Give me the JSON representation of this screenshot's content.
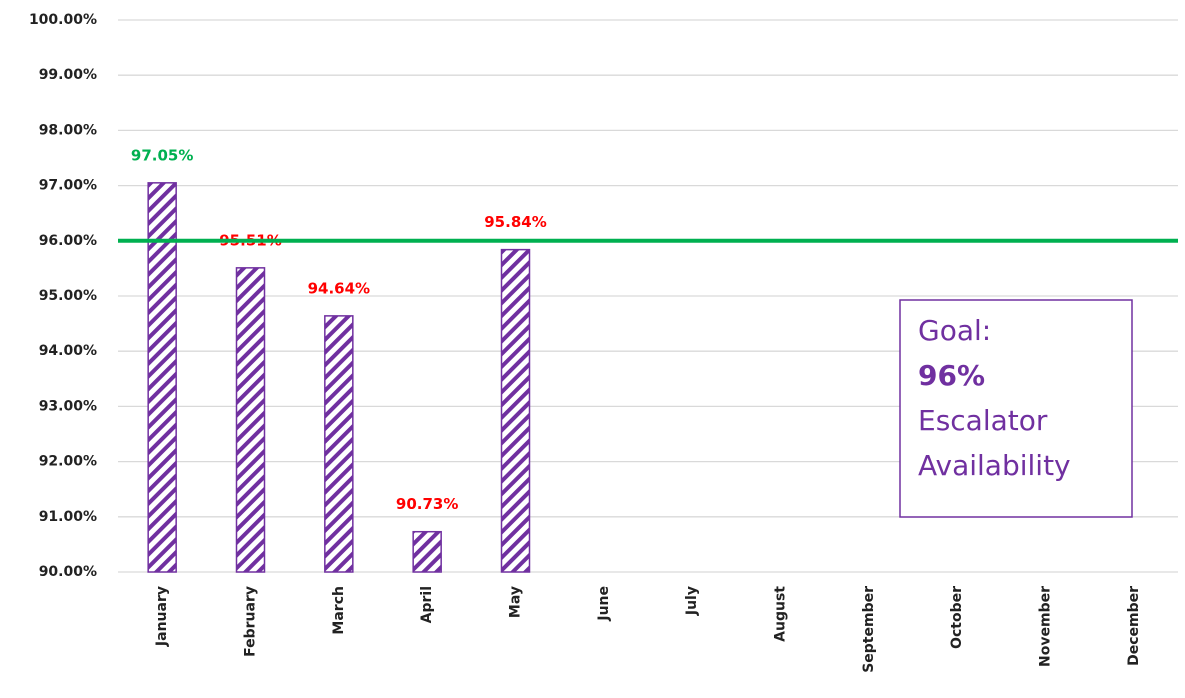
{
  "chart_data": {
    "type": "bar",
    "categories": [
      "January",
      "February",
      "March",
      "April",
      "May",
      "June",
      "July",
      "August",
      "September",
      "October",
      "November",
      "December"
    ],
    "values": [
      97.05,
      95.51,
      94.64,
      90.73,
      95.84,
      null,
      null,
      null,
      null,
      null,
      null,
      null
    ],
    "value_labels": [
      "97.05%",
      "95.51%",
      "94.64%",
      "90.73%",
      "95.84%",
      null,
      null,
      null,
      null,
      null,
      null,
      null
    ],
    "color": "#7030a0",
    "ylim": [
      90,
      100
    ],
    "yticks": [
      {
        "value": 90,
        "label": "90.00%"
      },
      {
        "value": 91,
        "label": "91.00%"
      },
      {
        "value": 92,
        "label": "92.00%"
      },
      {
        "value": 93,
        "label": "93.00%"
      },
      {
        "value": 94,
        "label": "94.00%"
      },
      {
        "value": 95,
        "label": "95.00%"
      },
      {
        "value": 96,
        "label": "96.00%"
      },
      {
        "value": 97,
        "label": "97.00%"
      },
      {
        "value": 98,
        "label": "98.00%"
      },
      {
        "value": 99,
        "label": "99.00%"
      },
      {
        "value": 100,
        "label": "100.00%"
      }
    ],
    "grid": true,
    "goal": 96,
    "goal_color": "#00b050",
    "annotation": {
      "lines": [
        "Goal:",
        "96%",
        "Escalator",
        "Availability"
      ]
    }
  }
}
